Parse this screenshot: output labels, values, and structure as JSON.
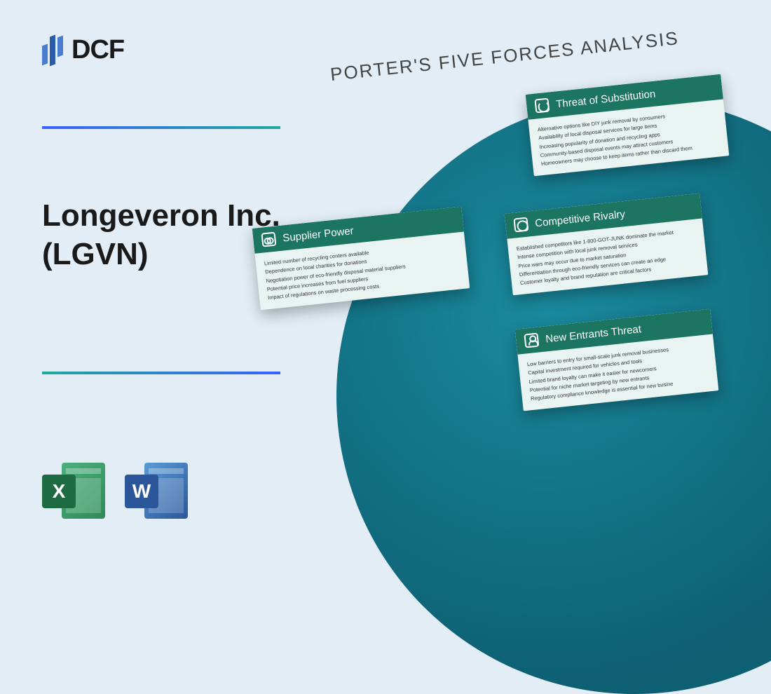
{
  "logo": {
    "text": "DCF"
  },
  "company": {
    "name": "Longeveron Inc. (LGVN)"
  },
  "file_icons": {
    "excel": "X",
    "word": "W"
  },
  "diagram": {
    "title": "PORTER'S FIVE FORCES ANALYSIS",
    "cards": {
      "substitution": {
        "title": "Threat of Substitution",
        "items": [
          "Alternative options like DIY junk removal by consumers",
          "Availability of local disposal services for large items",
          "Increasing popularity of donation and recycling apps",
          "Community-based disposal events may attract customers",
          "Homeowners may choose to keep items rather than discard them"
        ]
      },
      "supplier": {
        "title": "Supplier Power",
        "items": [
          "Limited number of recycling centers available",
          "Dependence on local charities for donations",
          "Negotiation power of eco-friendly disposal material suppliers",
          "Potential price increases from fuel suppliers",
          "Impact of regulations on waste processing costs"
        ]
      },
      "rivalry": {
        "title": "Competitive Rivalry",
        "items": [
          "Established competitors like 1-800-GOT-JUNK dominate the market",
          "Intense competition with local junk removal services",
          "Price wars may occur due to market saturation",
          "Differentiation through eco-friendly services can create an edge",
          "Customer loyalty and brand reputation are critical factors"
        ]
      },
      "entrants": {
        "title": "New Entrants Threat",
        "items": [
          "Low barriers to entry for small-scale junk removal businesses",
          "Capital investment required for vehicles and tools",
          "Limited brand loyalty can make it easier for newcomers",
          "Potential for niche market targeting by new entrants",
          "Regulatory compliance knowledge is essential for new busine"
        ]
      }
    }
  },
  "colors": {
    "background": "#e2edf5",
    "card_header": "#1b7560",
    "card_body": "#e8f3f2",
    "circle": "#0d5f72",
    "gradient_start": "#3b5fff",
    "gradient_end": "#1fa89a"
  }
}
